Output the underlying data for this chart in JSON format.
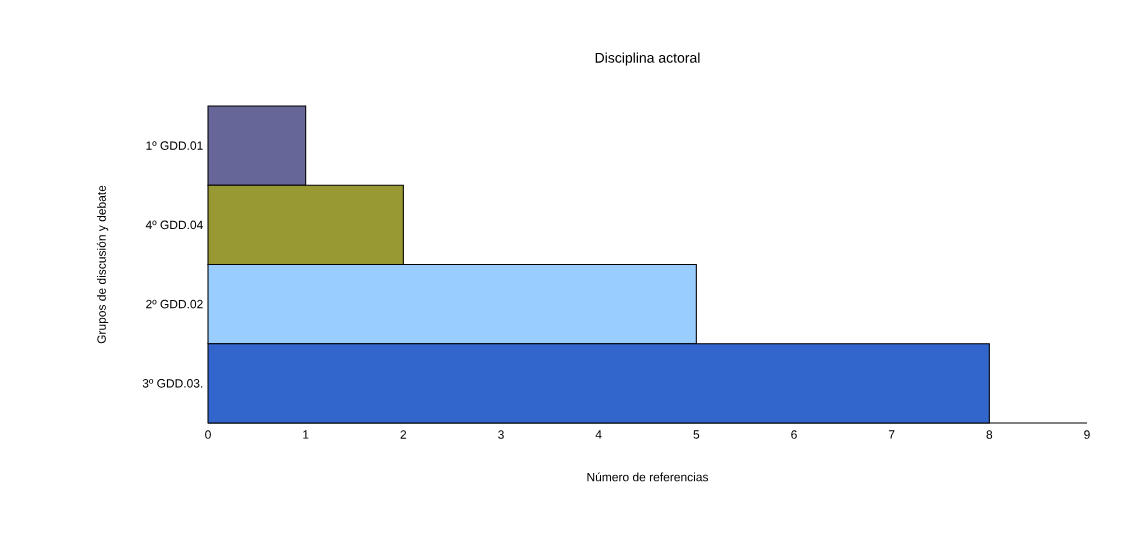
{
  "chart_data": {
    "type": "bar",
    "orientation": "horizontal",
    "title": "Disciplina actoral",
    "xlabel": "Número de referencias",
    "ylabel": "Grupos de discusión y debate",
    "categories": [
      "1º  GDD.01",
      "4º  GDD.04",
      "2º  GDD.02",
      "3º  GDD.03."
    ],
    "values": [
      1,
      2,
      5,
      8
    ],
    "colors": [
      "#666699",
      "#999933",
      "#99ccff",
      "#3366cc"
    ],
    "xlim": [
      0,
      9
    ],
    "xticks": [
      0,
      1,
      2,
      3,
      4,
      5,
      6,
      7,
      8,
      9
    ]
  }
}
